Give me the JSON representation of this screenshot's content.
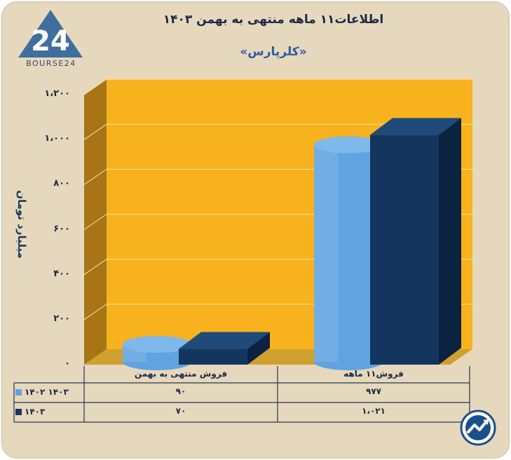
{
  "header": {
    "logo_text": "BOURSE24",
    "title": "اطلاعات۱۱ ماهه منتهی به بهمن ۱۴۰۳",
    "subtitle": "«کلرپارس»"
  },
  "colors": {
    "background": "#e6d8bd",
    "plot_back": "#f7b21e",
    "plot_side": "#a77515",
    "floor": "#cfa030",
    "series_1402": "#5fa3e0",
    "series_1403": "#14365e"
  },
  "chart_data": {
    "type": "bar",
    "title": "اطلاعات۱۱ ماهه منتهی به بهمن ۱۴۰۳",
    "subtitle": "«کلرپارس»",
    "ylabel": "میلیارد تومان",
    "ylim": [
      0,
      1200
    ],
    "yticks": [
      0,
      200,
      400,
      600,
      800,
      1000,
      1200
    ],
    "ytick_labels": [
      "۰",
      "۲۰۰",
      "۴۰۰",
      "۶۰۰",
      "۸۰۰",
      "۱،۰۰۰",
      "۱،۲۰۰"
    ],
    "grid": true,
    "categories": [
      "فروش منتهی به  بهمن",
      "فروش۱۱  ماهه"
    ],
    "series": [
      {
        "name": "۱۴۰۲ ۱۴۰۳",
        "shape": "cylinder",
        "values": [
          90,
          977
        ],
        "value_labels": [
          "۹۰",
          "۹۷۷"
        ]
      },
      {
        "name": "۱۴۰۳",
        "shape": "box",
        "values": [
          70,
          1021
        ],
        "value_labels": [
          "۷۰",
          "۱،۰۲۱"
        ]
      }
    ],
    "legend": "data-table-left"
  }
}
